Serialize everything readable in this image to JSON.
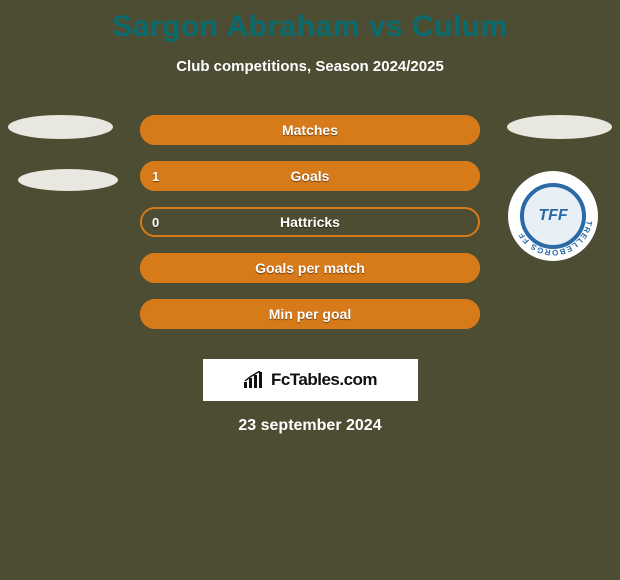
{
  "background_color": "#4d4d33",
  "title": {
    "text": "Sargon Abraham vs Culum",
    "color": "#0a6b6f",
    "fontsize": 30
  },
  "subtitle": {
    "text": "Club competitions, Season 2024/2025",
    "color": "#ffffff",
    "fontsize": 15
  },
  "player_left": {
    "avatar_color": "#e8e8e0"
  },
  "player_right": {
    "avatar_color": "#e8e8e0",
    "club_badge": {
      "ring_text": "TRELLEBORGS FF",
      "letters": "TFF",
      "ring_color": "#2a6aa8",
      "bg": "#ffffff"
    }
  },
  "bars": {
    "accent_color": "#d77a1a",
    "text_color": "#ffffff",
    "rows": [
      {
        "label": "Matches",
        "left_value": "",
        "fill_pct": 100
      },
      {
        "label": "Goals",
        "left_value": "1",
        "fill_pct": 100
      },
      {
        "label": "Hattricks",
        "left_value": "0",
        "fill_pct": 0
      },
      {
        "label": "Goals per match",
        "left_value": "",
        "fill_pct": 100
      },
      {
        "label": "Min per goal",
        "left_value": "",
        "fill_pct": 100
      }
    ]
  },
  "watermark": {
    "text": "FcTables.com",
    "bg": "#ffffff",
    "text_color": "#111111"
  },
  "date": {
    "text": "23 september 2024",
    "color": "#ffffff"
  }
}
